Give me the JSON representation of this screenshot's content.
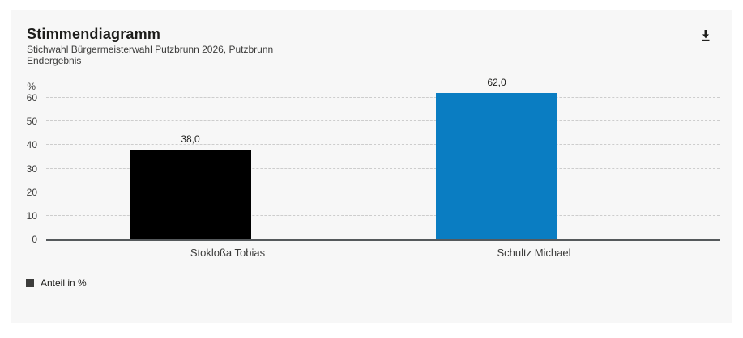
{
  "header": {
    "title": "Stimmendiagramm",
    "subtitle_line1": "Stichwahl Bürgermeisterwahl Putzbrunn 2026, Putzbrunn",
    "subtitle_line2": "Endergebnis"
  },
  "toolbar": {
    "download_icon": "download-icon"
  },
  "chart_data": {
    "type": "bar",
    "title": "Stimmendiagramm",
    "subtitle": "Stichwahl Bürgermeisterwahl Putzbrunn 2026, Putzbrunn — Endergebnis",
    "categories": [
      "Stokloßa Tobias",
      "Schultz Michael"
    ],
    "values": [
      38.0,
      62.0
    ],
    "value_labels": [
      "38,0",
      "62,0"
    ],
    "bar_colors": [
      "#000000",
      "#0a7dc2"
    ],
    "ylabel": "%",
    "ylim": [
      0,
      60
    ],
    "yticks": [
      0,
      10,
      20,
      30,
      40,
      50,
      60
    ],
    "grid": "horizontal-dashed",
    "legend": {
      "label": "Anteil in %",
      "swatch_color": "#3c3c3b",
      "position": "bottom-left"
    }
  },
  "colors": {
    "page_bg": "#ffffff",
    "card_bg": "#f7f7f7",
    "text_dark": "#1d1d1b",
    "text_muted": "#3c3c3b",
    "gridline": "#cdcdcd",
    "axis_line": "#55595c",
    "bar_black": "#000000",
    "bar_blue": "#0a7dc2"
  }
}
